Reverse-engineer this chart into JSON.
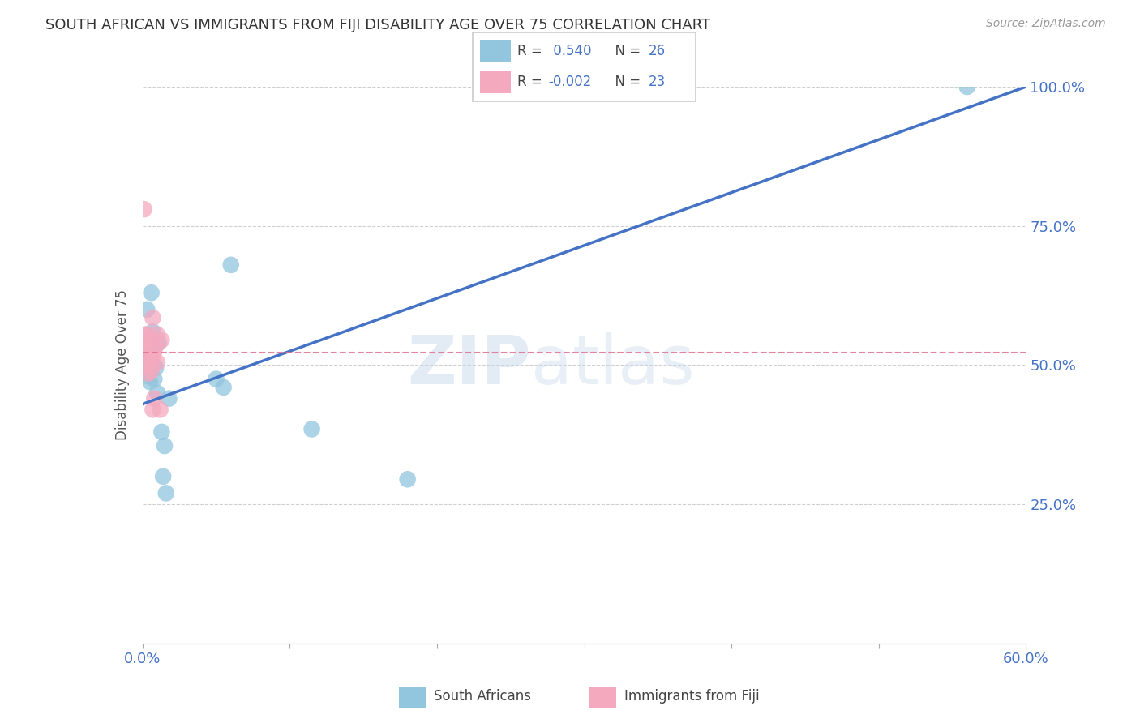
{
  "title": "SOUTH AFRICAN VS IMMIGRANTS FROM FIJI DISABILITY AGE OVER 75 CORRELATION CHART",
  "source": "Source: ZipAtlas.com",
  "ylabel": "Disability Age Over 75",
  "xlim": [
    0,
    0.6
  ],
  "ylim": [
    0,
    1.0
  ],
  "xticks": [
    0.0,
    0.1,
    0.2,
    0.3,
    0.4,
    0.5,
    0.6
  ],
  "xticklabels": [
    "0.0%",
    "",
    "",
    "",
    "",
    "",
    "60.0%"
  ],
  "yticks": [
    0.0,
    0.25,
    0.5,
    0.75,
    1.0
  ],
  "yticklabels": [
    "",
    "25.0%",
    "50.0%",
    "75.0%",
    "100.0%"
  ],
  "grid_color": "#d0d0d0",
  "background_color": "#ffffff",
  "title_color": "#333333",
  "axis_color": "#4472c4",
  "watermark_text": "ZIP",
  "watermark_text2": "atlas",
  "south_african_color": "#92C5DE",
  "fiji_color": "#F4A9BE",
  "trend_blue": "#4472c4",
  "trend_pink": "#E07090",
  "R_sa": "0.540",
  "N_sa": "26",
  "R_fiji": "-0.002",
  "N_fiji": "23",
  "trend_blue_x0": 0.0,
  "trend_blue_y0": 0.43,
  "trend_blue_x1": 0.6,
  "trend_blue_y1": 1.0,
  "trend_pink_y": 0.522,
  "sa_x": [
    0.001,
    0.002,
    0.003,
    0.003,
    0.004,
    0.004,
    0.005,
    0.005,
    0.006,
    0.007,
    0.007,
    0.008,
    0.009,
    0.01,
    0.011,
    0.013,
    0.014,
    0.015,
    0.016,
    0.018,
    0.05,
    0.055,
    0.06,
    0.115,
    0.18,
    0.56
  ],
  "sa_y": [
    0.49,
    0.505,
    0.54,
    0.6,
    0.5,
    0.48,
    0.47,
    0.5,
    0.63,
    0.56,
    0.5,
    0.475,
    0.495,
    0.45,
    0.54,
    0.38,
    0.3,
    0.355,
    0.27,
    0.44,
    0.475,
    0.46,
    0.68,
    0.385,
    0.295,
    1.0
  ],
  "fiji_x": [
    0.001,
    0.001,
    0.002,
    0.002,
    0.003,
    0.003,
    0.004,
    0.004,
    0.005,
    0.005,
    0.006,
    0.006,
    0.007,
    0.007,
    0.007,
    0.008,
    0.008,
    0.009,
    0.01,
    0.01,
    0.012,
    0.013,
    0.001
  ],
  "fiji_y": [
    0.545,
    0.525,
    0.555,
    0.535,
    0.555,
    0.5,
    0.485,
    0.52,
    0.545,
    0.51,
    0.505,
    0.49,
    0.515,
    0.585,
    0.42,
    0.44,
    0.525,
    0.535,
    0.505,
    0.555,
    0.42,
    0.545,
    0.78
  ]
}
